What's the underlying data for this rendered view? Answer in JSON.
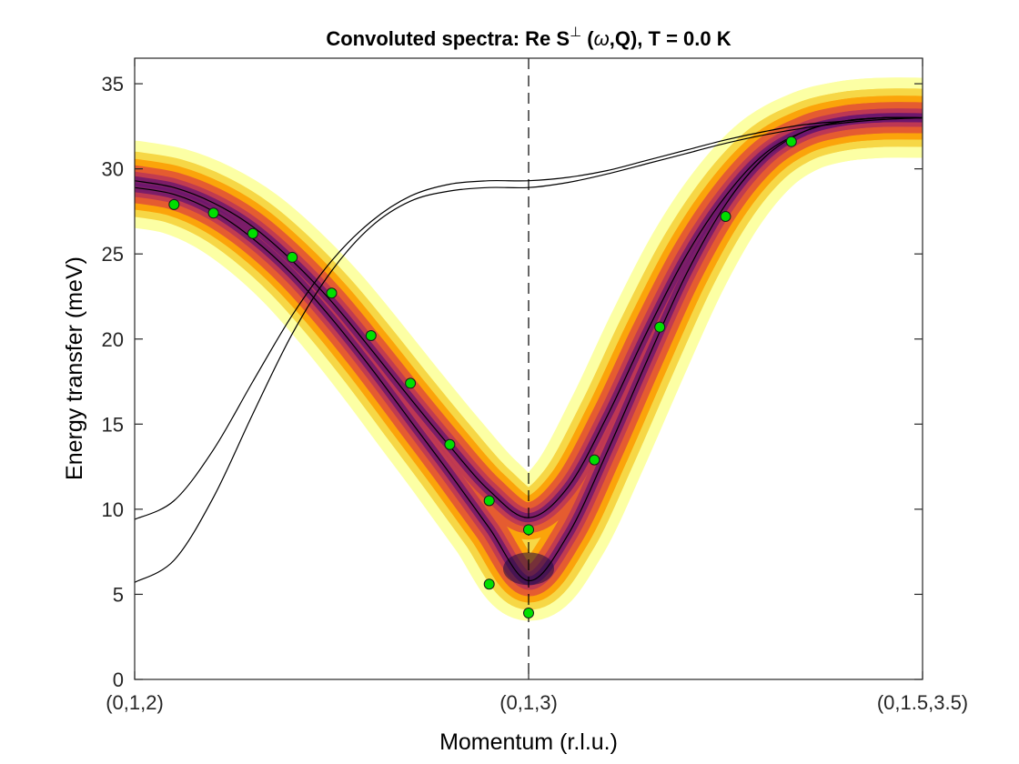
{
  "chart_data": {
    "type": "line",
    "title": {
      "prefix": "Convoluted spectra: Re S",
      "superscript": "⊥",
      "omega": "ω",
      "suffix": ",Q), T =   0.0 K"
    },
    "xlabel": "Momentum (r.l.u.)",
    "ylabel": "Energy transfer (meV)",
    "xlim": [
      0,
      2
    ],
    "ylim": [
      0,
      36.5
    ],
    "x_ticks": [
      {
        "x": 0,
        "label": "(0,1,2)"
      },
      {
        "x": 1,
        "label": "(0,1,3)"
      },
      {
        "x": 2,
        "label": "(0,1.5,3.5)"
      }
    ],
    "y_ticks": [
      0,
      5,
      10,
      15,
      20,
      25,
      30,
      35
    ],
    "vertical_line": {
      "x": 1,
      "style": "dashed"
    },
    "colormap": "inferno",
    "colors": {
      "points": "#00e000",
      "lines": "#000000"
    },
    "series": [
      {
        "x": [
          0,
          0.1,
          0.2,
          0.3,
          0.4,
          0.5,
          0.6,
          0.7,
          0.8,
          0.9,
          1.0,
          1.1,
          1.2,
          1.3,
          1.4,
          1.5,
          1.6,
          1.7,
          1.8,
          1.9,
          2.0
        ],
        "y": [
          29.3,
          28.9,
          28.0,
          26.6,
          24.6,
          22.2,
          19.4,
          16.5,
          13.7,
          11.1,
          9.5,
          11.3,
          15.5,
          20.4,
          24.9,
          28.4,
          30.9,
          32.2,
          32.8,
          33.0,
          33.0
        ]
      },
      {
        "x": [
          0,
          0.1,
          0.2,
          0.3,
          0.4,
          0.5,
          0.6,
          0.7,
          0.8,
          0.9,
          1.0,
          1.1,
          1.2,
          1.3,
          1.4,
          1.5,
          1.6,
          1.7,
          1.8,
          1.9,
          2.0
        ],
        "y": [
          28.9,
          28.5,
          27.5,
          25.9,
          23.8,
          21.2,
          18.3,
          15.2,
          12.1,
          8.9,
          5.8,
          8.5,
          13.4,
          18.7,
          23.8,
          27.9,
          30.7,
          32.2,
          32.8,
          33.0,
          33.0
        ]
      },
      {
        "x": [
          0,
          0.1,
          0.2,
          0.3,
          0.4,
          0.5,
          0.6,
          0.7,
          0.8,
          0.9,
          1.0,
          1.1,
          1.2,
          1.3,
          1.4,
          1.5,
          1.6,
          1.7,
          1.8,
          1.9,
          2.0
        ],
        "y": [
          9.4,
          10.5,
          13.5,
          17.5,
          21.4,
          24.6,
          26.9,
          28.4,
          29.1,
          29.3,
          29.3,
          29.5,
          29.9,
          30.5,
          31.1,
          31.7,
          32.2,
          32.6,
          32.8,
          33.0,
          33.0
        ]
      },
      {
        "x": [
          0,
          0.1,
          0.2,
          0.3,
          0.4,
          0.5,
          0.6,
          0.7,
          0.8,
          0.9,
          1.0,
          1.1,
          1.2,
          1.3,
          1.4,
          1.5,
          1.6,
          1.7,
          1.8,
          1.9,
          2.0
        ],
        "y": [
          5.7,
          7.0,
          10.7,
          15.6,
          20.3,
          24.0,
          26.6,
          28.1,
          28.7,
          28.9,
          28.9,
          29.2,
          29.7,
          30.3,
          30.9,
          31.5,
          32.0,
          32.4,
          32.7,
          32.9,
          33.0
        ]
      }
    ],
    "points": {
      "x": [
        0.1,
        0.2,
        0.3,
        0.4,
        0.5,
        0.6,
        0.7,
        0.8,
        0.9,
        1.0,
        1.0,
        0.9,
        1.167,
        1.333,
        1.5,
        1.667
      ],
      "y": [
        27.9,
        27.4,
        26.2,
        24.8,
        22.7,
        20.2,
        17.4,
        13.8,
        10.5,
        8.8,
        3.9,
        5.6,
        12.9,
        20.7,
        27.2,
        31.6
      ]
    }
  }
}
